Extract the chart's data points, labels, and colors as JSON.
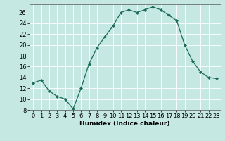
{
  "x": [
    0,
    1,
    2,
    3,
    4,
    5,
    6,
    7,
    8,
    9,
    10,
    11,
    12,
    13,
    14,
    15,
    16,
    17,
    18,
    19,
    20,
    21,
    22,
    23
  ],
  "y": [
    13,
    13.5,
    11.5,
    10.5,
    10,
    8.2,
    12,
    16.5,
    19.5,
    21.5,
    23.5,
    26,
    26.5,
    26,
    26.5,
    27,
    26.5,
    25.5,
    24.5,
    20,
    17,
    15,
    14,
    13.8
  ],
  "line_color": "#1a6b5a",
  "marker": "D",
  "marker_size": 2.0,
  "bg_color": "#c5e8e2",
  "grid_color": "#ffffff",
  "xlabel": "Humidex (Indice chaleur)",
  "xlim": [
    -0.5,
    23.5
  ],
  "ylim": [
    8,
    27.5
  ],
  "yticks": [
    8,
    10,
    12,
    14,
    16,
    18,
    20,
    22,
    24,
    26
  ],
  "xticks": [
    0,
    1,
    2,
    3,
    4,
    5,
    6,
    7,
    8,
    9,
    10,
    11,
    12,
    13,
    14,
    15,
    16,
    17,
    18,
    19,
    20,
    21,
    22,
    23
  ],
  "label_fontsize": 6.5,
  "tick_fontsize": 6.0
}
